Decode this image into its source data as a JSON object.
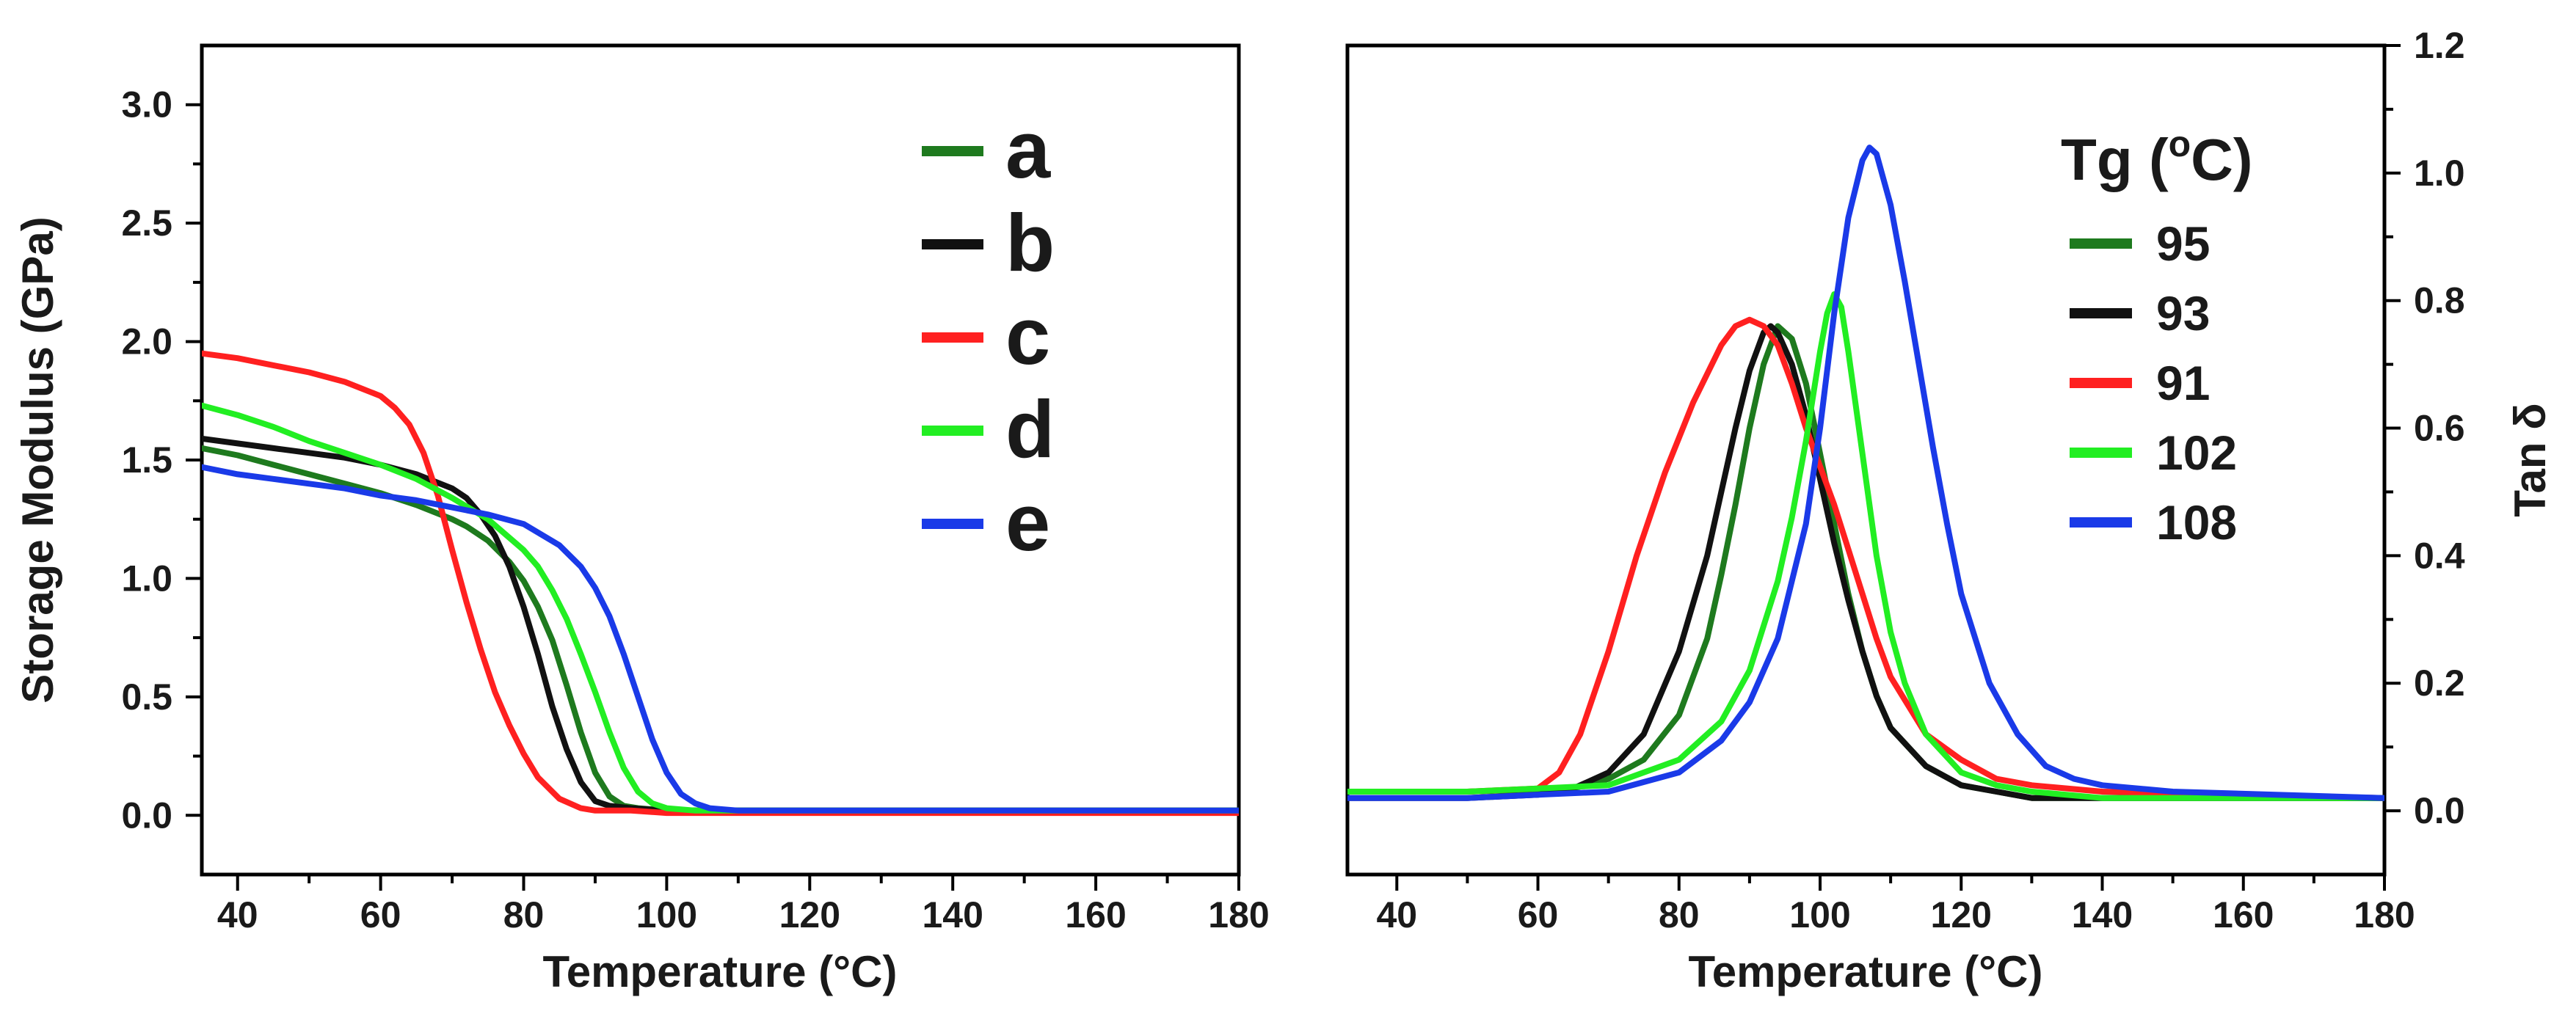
{
  "chart_data": [
    {
      "type": "line",
      "title": "",
      "xlabel": "Temperature (°C)",
      "ylabel": "Storage Modulus (GPa)",
      "xlim": [
        35,
        180
      ],
      "ylim": [
        -0.25,
        3.25
      ],
      "xticks": [
        40,
        60,
        80,
        100,
        120,
        140,
        160,
        180
      ],
      "xtick_labels": [
        "40",
        "60",
        "80",
        "100",
        "120",
        "140",
        "160",
        "180"
      ],
      "yticks": [
        0.0,
        0.5,
        1.0,
        1.5,
        2.0,
        2.5,
        3.0
      ],
      "ytick_labels": [
        "0.0",
        "0.5",
        "1.0",
        "1.5",
        "2.0",
        "2.5",
        "3.0"
      ],
      "grid": false,
      "legend_position": "top-right",
      "series": [
        {
          "name": "a",
          "color": "#1e7a1e",
          "x": [
            35,
            40,
            45,
            50,
            55,
            60,
            65,
            70,
            72,
            75,
            78,
            80,
            82,
            84,
            86,
            88,
            90,
            92,
            94,
            96,
            100,
            110,
            180
          ],
          "y": [
            1.55,
            1.52,
            1.48,
            1.44,
            1.4,
            1.36,
            1.31,
            1.25,
            1.22,
            1.16,
            1.07,
            0.99,
            0.88,
            0.74,
            0.55,
            0.35,
            0.18,
            0.08,
            0.04,
            0.03,
            0.02,
            0.02,
            0.02
          ]
        },
        {
          "name": "b",
          "color": "#111111",
          "x": [
            35,
            40,
            45,
            50,
            55,
            60,
            65,
            70,
            72,
            74,
            76,
            78,
            80,
            82,
            84,
            86,
            88,
            90,
            92,
            95,
            100,
            180
          ],
          "y": [
            1.59,
            1.57,
            1.55,
            1.53,
            1.51,
            1.48,
            1.44,
            1.38,
            1.34,
            1.27,
            1.18,
            1.05,
            0.88,
            0.68,
            0.46,
            0.28,
            0.14,
            0.06,
            0.04,
            0.03,
            0.02,
            0.02
          ]
        },
        {
          "name": "c",
          "color": "#ff2020",
          "x": [
            35,
            40,
            45,
            50,
            55,
            60,
            62,
            64,
            66,
            68,
            70,
            72,
            74,
            76,
            78,
            80,
            82,
            85,
            88,
            90,
            95,
            100,
            180
          ],
          "y": [
            1.95,
            1.93,
            1.9,
            1.87,
            1.83,
            1.77,
            1.72,
            1.65,
            1.53,
            1.35,
            1.12,
            0.9,
            0.7,
            0.52,
            0.38,
            0.26,
            0.16,
            0.07,
            0.03,
            0.02,
            0.02,
            0.01,
            0.01
          ]
        },
        {
          "name": "d",
          "color": "#22ee22",
          "x": [
            35,
            40,
            45,
            50,
            55,
            60,
            65,
            70,
            75,
            80,
            82,
            84,
            86,
            88,
            90,
            92,
            94,
            96,
            98,
            100,
            104,
            110,
            180
          ],
          "y": [
            1.73,
            1.69,
            1.64,
            1.58,
            1.53,
            1.48,
            1.42,
            1.34,
            1.25,
            1.12,
            1.05,
            0.95,
            0.83,
            0.68,
            0.52,
            0.35,
            0.2,
            0.1,
            0.05,
            0.03,
            0.02,
            0.02,
            0.02
          ]
        },
        {
          "name": "e",
          "color": "#1a3ae8",
          "x": [
            35,
            40,
            45,
            50,
            55,
            60,
            65,
            70,
            75,
            80,
            85,
            88,
            90,
            92,
            94,
            96,
            98,
            100,
            102,
            104,
            106,
            110,
            115,
            180
          ],
          "y": [
            1.47,
            1.44,
            1.42,
            1.4,
            1.38,
            1.35,
            1.33,
            1.3,
            1.27,
            1.23,
            1.14,
            1.05,
            0.96,
            0.84,
            0.68,
            0.5,
            0.32,
            0.18,
            0.09,
            0.05,
            0.03,
            0.02,
            0.02,
            0.02
          ]
        }
      ]
    },
    {
      "type": "line",
      "title": "",
      "xlabel": "Temperature (°C)",
      "ylabel": "Tan δ",
      "xlim": [
        33,
        180
      ],
      "ylim": [
        -0.1,
        1.2
      ],
      "xticks": [
        40,
        60,
        80,
        100,
        120,
        140,
        160,
        180
      ],
      "xtick_labels": [
        "40",
        "60",
        "80",
        "100",
        "120",
        "140",
        "160",
        "180"
      ],
      "yticks": [
        0.0,
        0.2,
        0.4,
        0.6,
        0.8,
        1.0,
        1.2
      ],
      "ytick_labels": [
        "0.0",
        "0.2",
        "0.4",
        "0.6",
        "0.8",
        "1.0",
        "1.2"
      ],
      "y_axis_side": "right",
      "grid": false,
      "legend_title": "Tg (°C)",
      "legend_title_main": "Tg (",
      "legend_title_sup": "o",
      "legend_title_end": "C)",
      "legend_position": "top-right",
      "series": [
        {
          "name": "95",
          "color": "#1e7a1e",
          "x": [
            33,
            50,
            65,
            70,
            75,
            80,
            84,
            86,
            88,
            90,
            92,
            94,
            96,
            98,
            100,
            102,
            104,
            106,
            108,
            110,
            115,
            120,
            125,
            130,
            140,
            180
          ],
          "y": [
            0.03,
            0.03,
            0.035,
            0.05,
            0.08,
            0.15,
            0.27,
            0.37,
            0.48,
            0.6,
            0.7,
            0.76,
            0.74,
            0.67,
            0.56,
            0.45,
            0.34,
            0.25,
            0.18,
            0.13,
            0.07,
            0.04,
            0.03,
            0.02,
            0.02,
            0.02
          ]
        },
        {
          "name": "93",
          "color": "#111111",
          "x": [
            33,
            50,
            60,
            65,
            70,
            75,
            80,
            84,
            86,
            88,
            90,
            92,
            93,
            94,
            96,
            98,
            100,
            102,
            104,
            106,
            108,
            110,
            115,
            120,
            125,
            130,
            140,
            180
          ],
          "y": [
            0.02,
            0.02,
            0.025,
            0.035,
            0.06,
            0.12,
            0.25,
            0.4,
            0.5,
            0.6,
            0.69,
            0.75,
            0.76,
            0.75,
            0.7,
            0.62,
            0.52,
            0.42,
            0.33,
            0.25,
            0.18,
            0.13,
            0.07,
            0.04,
            0.03,
            0.02,
            0.02,
            0.02
          ]
        },
        {
          "name": "91",
          "color": "#ff2020",
          "x": [
            33,
            50,
            60,
            63,
            66,
            70,
            74,
            78,
            82,
            86,
            88,
            90,
            92,
            94,
            96,
            98,
            100,
            102,
            104,
            106,
            108,
            110,
            115,
            120,
            125,
            130,
            140,
            180
          ],
          "y": [
            0.03,
            0.03,
            0.035,
            0.06,
            0.12,
            0.25,
            0.4,
            0.53,
            0.64,
            0.73,
            0.76,
            0.77,
            0.76,
            0.73,
            0.67,
            0.6,
            0.54,
            0.48,
            0.41,
            0.34,
            0.27,
            0.21,
            0.12,
            0.08,
            0.05,
            0.04,
            0.03,
            0.02
          ]
        },
        {
          "name": "102",
          "color": "#22ee22",
          "x": [
            33,
            50,
            60,
            70,
            80,
            86,
            90,
            94,
            96,
            98,
            100,
            101,
            102,
            103,
            104,
            106,
            108,
            110,
            112,
            115,
            120,
            125,
            130,
            140,
            180
          ],
          "y": [
            0.03,
            0.03,
            0.035,
            0.04,
            0.08,
            0.14,
            0.22,
            0.36,
            0.46,
            0.58,
            0.72,
            0.78,
            0.81,
            0.79,
            0.72,
            0.56,
            0.4,
            0.28,
            0.2,
            0.12,
            0.06,
            0.04,
            0.03,
            0.02,
            0.02
          ]
        },
        {
          "name": "108",
          "color": "#1a3ae8",
          "x": [
            33,
            50,
            60,
            70,
            80,
            86,
            90,
            94,
            98,
            100,
            102,
            104,
            106,
            107,
            108,
            110,
            112,
            114,
            116,
            118,
            120,
            124,
            128,
            132,
            136,
            140,
            150,
            180
          ],
          "y": [
            0.02,
            0.02,
            0.025,
            0.03,
            0.06,
            0.11,
            0.17,
            0.27,
            0.45,
            0.6,
            0.78,
            0.93,
            1.02,
            1.04,
            1.03,
            0.95,
            0.83,
            0.7,
            0.57,
            0.45,
            0.34,
            0.2,
            0.12,
            0.07,
            0.05,
            0.04,
            0.03,
            0.02
          ]
        }
      ]
    }
  ]
}
